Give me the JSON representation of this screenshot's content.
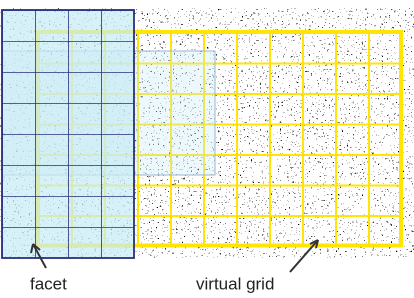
{
  "labels": {
    "facet": "facet",
    "virtual_grid": "virtual grid"
  }
}
